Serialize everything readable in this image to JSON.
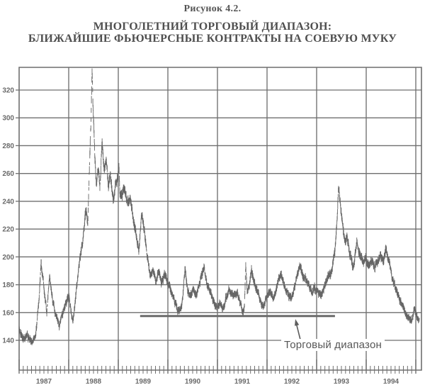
{
  "figure": {
    "caption": "Рисунок 4.2.",
    "title_line1": "МНОГОЛЕТНИЙ ТОРГОВЫЙ ДИАПАЗОН:",
    "title_line2": "БЛИЖАЙШИЕ ФЬЮЧЕРСНЫЕ КОНТРАКТЫ НА СОЕВУЮ МУКУ"
  },
  "chart_data": {
    "type": "bar",
    "subtype": "daily_high_low_price_bars",
    "title": "МНОГОЛЕТНИЙ ТОРГОВЫЙ ДИАПАЗОН: БЛИЖАЙШИЕ ФЬЮЧЕРСНЫЕ КОНТРАКТЫ НА СОЕВУЮ МУКУ",
    "xlabel": "",
    "ylabel": "",
    "grid": true,
    "legend": "none",
    "x_axis": {
      "labels": [
        "1987",
        "1988",
        "1989",
        "1990",
        "1991",
        "1992",
        "1993",
        "1994"
      ],
      "start_year": 1987,
      "end_year": 1995.11,
      "minor_ticks": "months"
    },
    "y_axis": {
      "ticks": [
        320,
        300,
        280,
        260,
        240,
        220,
        200,
        180,
        160,
        140
      ],
      "min": 119,
      "max": 336
    },
    "colors": {
      "grid": "#6f6f6f",
      "border": "#6f6f6f",
      "bars": "#666666",
      "axis_text": "#6a6a6a",
      "range_line": "#6b6b6b",
      "background": "#ffffff"
    },
    "trading_range": {
      "value": 157.5,
      "from_year": 1989.44,
      "to_year": 1993.37
    },
    "annotation": {
      "label": "Торговый диапазон",
      "arrow_to": {
        "year": 1992.57,
        "value": 157.5
      }
    },
    "series": [
      {
        "name": "Ближайшие фьючерсные контракты на соевую муку",
        "keypoints": [
          [
            1987.0,
            148
          ],
          [
            1987.086,
            141
          ],
          [
            1987.157,
            144
          ],
          [
            1987.257,
            138
          ],
          [
            1987.329,
            143
          ],
          [
            1987.4,
            168
          ],
          [
            1987.443,
            196
          ],
          [
            1987.5,
            178
          ],
          [
            1987.557,
            160
          ],
          [
            1987.614,
            186
          ],
          [
            1987.671,
            170
          ],
          [
            1987.729,
            160
          ],
          [
            1987.814,
            151
          ],
          [
            1987.9,
            162
          ],
          [
            1988.0,
            172
          ],
          [
            1988.057,
            158
          ],
          [
            1988.086,
            153
          ],
          [
            1988.143,
            172
          ],
          [
            1988.214,
            196
          ],
          [
            1988.286,
            212
          ],
          [
            1988.343,
            234
          ],
          [
            1988.386,
            224
          ],
          [
            1988.414,
            260
          ],
          [
            1988.45,
            298
          ],
          [
            1988.471,
            335
          ],
          [
            1988.49,
            308
          ],
          [
            1988.51,
            293
          ],
          [
            1988.529,
            268
          ],
          [
            1988.557,
            254
          ],
          [
            1988.6,
            263
          ],
          [
            1988.629,
            249
          ],
          [
            1988.671,
            283
          ],
          [
            1988.714,
            262
          ],
          [
            1988.757,
            271
          ],
          [
            1988.8,
            250
          ],
          [
            1988.843,
            258
          ],
          [
            1988.9,
            240
          ],
          [
            1988.943,
            252
          ],
          [
            1989.0,
            258
          ],
          [
            1989.01,
            270
          ],
          [
            1989.03,
            246
          ],
          [
            1989.071,
            244
          ],
          [
            1989.129,
            250
          ],
          [
            1989.186,
            238
          ],
          [
            1989.243,
            243
          ],
          [
            1989.3,
            227
          ],
          [
            1989.357,
            216
          ],
          [
            1989.414,
            204
          ],
          [
            1989.471,
            232
          ],
          [
            1989.529,
            218
          ],
          [
            1989.586,
            200
          ],
          [
            1989.643,
            186
          ],
          [
            1989.7,
            191
          ],
          [
            1989.757,
            182
          ],
          [
            1989.814,
            189
          ],
          [
            1989.871,
            181
          ],
          [
            1989.929,
            187
          ],
          [
            1990.0,
            182
          ],
          [
            1990.057,
            177
          ],
          [
            1990.129,
            168
          ],
          [
            1990.186,
            163
          ],
          [
            1990.243,
            161
          ],
          [
            1990.3,
            170
          ],
          [
            1990.343,
            191
          ],
          [
            1990.4,
            176
          ],
          [
            1990.457,
            172
          ],
          [
            1990.514,
            177
          ],
          [
            1990.571,
            172
          ],
          [
            1990.629,
            180
          ],
          [
            1990.686,
            188
          ],
          [
            1990.729,
            193
          ],
          [
            1990.786,
            180
          ],
          [
            1990.843,
            176
          ],
          [
            1990.9,
            170
          ],
          [
            1990.957,
            165
          ],
          [
            1991.0,
            163
          ],
          [
            1991.057,
            167
          ],
          [
            1991.114,
            162
          ],
          [
            1991.171,
            171
          ],
          [
            1991.229,
            176
          ],
          [
            1991.286,
            173
          ],
          [
            1991.343,
            172
          ],
          [
            1991.4,
            174
          ],
          [
            1991.457,
            167
          ],
          [
            1991.514,
            160
          ],
          [
            1991.543,
            163
          ],
          [
            1991.571,
            194
          ],
          [
            1991.6,
            175
          ],
          [
            1991.643,
            180
          ],
          [
            1991.686,
            190
          ],
          [
            1991.729,
            183
          ],
          [
            1991.786,
            177
          ],
          [
            1991.843,
            171
          ],
          [
            1991.886,
            166
          ],
          [
            1991.929,
            165
          ],
          [
            1992.0,
            172
          ],
          [
            1992.057,
            175
          ],
          [
            1992.114,
            170
          ],
          [
            1992.171,
            174
          ],
          [
            1992.229,
            183
          ],
          [
            1992.286,
            188
          ],
          [
            1992.343,
            180
          ],
          [
            1992.4,
            175
          ],
          [
            1992.457,
            170
          ],
          [
            1992.514,
            172
          ],
          [
            1992.571,
            180
          ],
          [
            1992.629,
            190
          ],
          [
            1992.671,
            194
          ],
          [
            1992.729,
            185
          ],
          [
            1992.786,
            184
          ],
          [
            1992.843,
            180
          ],
          [
            1992.9,
            174
          ],
          [
            1992.957,
            178
          ],
          [
            1993.0,
            176
          ],
          [
            1993.057,
            174
          ],
          [
            1993.114,
            172
          ],
          [
            1993.171,
            180
          ],
          [
            1993.229,
            186
          ],
          [
            1993.286,
            188
          ],
          [
            1993.329,
            196
          ],
          [
            1993.371,
            205
          ],
          [
            1993.414,
            228
          ],
          [
            1993.443,
            249
          ],
          [
            1993.486,
            235
          ],
          [
            1993.529,
            222
          ],
          [
            1993.571,
            212
          ],
          [
            1993.614,
            214
          ],
          [
            1993.657,
            205
          ],
          [
            1993.7,
            198
          ],
          [
            1993.743,
            192
          ],
          [
            1993.786,
            205
          ],
          [
            1993.814,
            213
          ],
          [
            1993.857,
            203
          ],
          [
            1993.9,
            200
          ],
          [
            1993.943,
            196
          ],
          [
            1994.0,
            198
          ],
          [
            1994.057,
            194
          ],
          [
            1994.114,
            198
          ],
          [
            1994.171,
            192
          ],
          [
            1994.229,
            197
          ],
          [
            1994.286,
            200
          ],
          [
            1994.343,
            197
          ],
          [
            1994.4,
            206
          ],
          [
            1994.457,
            196
          ],
          [
            1994.514,
            186
          ],
          [
            1994.571,
            180
          ],
          [
            1994.629,
            174
          ],
          [
            1994.686,
            168
          ],
          [
            1994.743,
            165
          ],
          [
            1994.786,
            160
          ],
          [
            1994.843,
            156
          ],
          [
            1994.9,
            154
          ],
          [
            1994.943,
            158
          ],
          [
            1994.971,
            164
          ],
          [
            1995.014,
            157
          ],
          [
            1995.071,
            155
          ]
        ]
      }
    ]
  }
}
